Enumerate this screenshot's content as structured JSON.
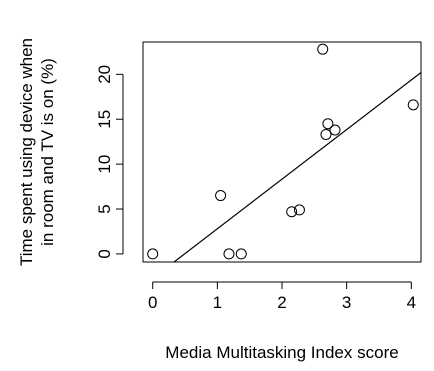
{
  "chart_data": {
    "type": "scatter",
    "title": "",
    "xlabel": "Media Multitasking Index score",
    "ylabel_lines": [
      "Time spent using device when",
      "in room and TV is on (%)"
    ],
    "xlim": [
      -0.15,
      4.15
    ],
    "ylim": [
      -0.9,
      23.6
    ],
    "xticks": [
      0,
      1,
      2,
      3,
      4
    ],
    "yticks": [
      0,
      5,
      10,
      15,
      20
    ],
    "grid": false,
    "points": [
      {
        "x": 0.0,
        "y": 0.0
      },
      {
        "x": 1.05,
        "y": 6.5
      },
      {
        "x": 1.18,
        "y": 0.0
      },
      {
        "x": 1.37,
        "y": 0.0
      },
      {
        "x": 2.15,
        "y": 4.7
      },
      {
        "x": 2.27,
        "y": 4.9
      },
      {
        "x": 2.63,
        "y": 22.8
      },
      {
        "x": 2.68,
        "y": 13.3
      },
      {
        "x": 2.71,
        "y": 14.5
      },
      {
        "x": 2.82,
        "y": 13.8
      },
      {
        "x": 4.03,
        "y": 16.6
      }
    ],
    "fit_line": {
      "x": [
        0.33,
        4.15
      ],
      "y": [
        -0.9,
        20.2
      ]
    }
  }
}
